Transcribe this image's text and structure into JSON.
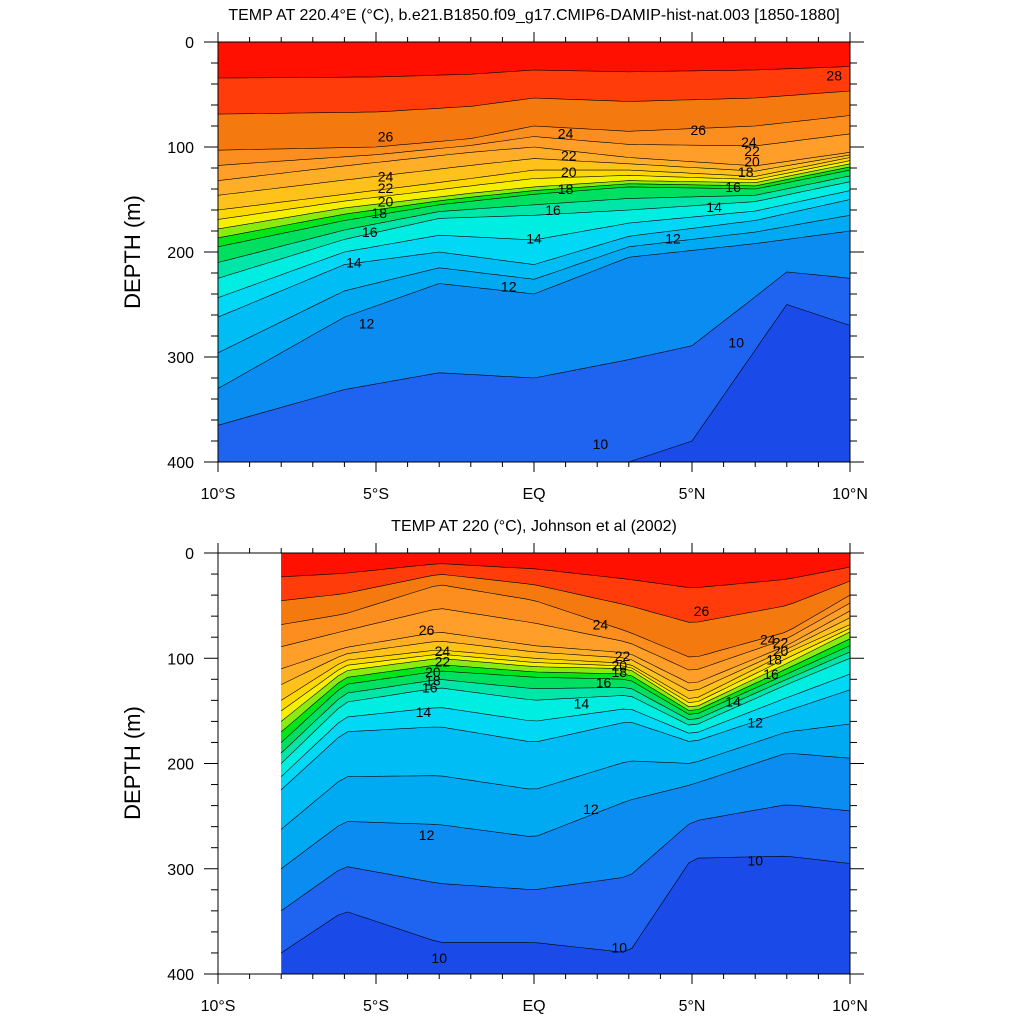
{
  "chart_data": [
    {
      "type": "contour",
      "title": "TEMP AT 220.4°E (°C), b.e21.B1850.f09_g17.CMIP6-DAMIP-hist-nat.003 [1850-1880]",
      "ylabel": "DEPTH (m)",
      "xlabel": "",
      "x_ticks": [
        {
          "value": -10,
          "label": "10°S"
        },
        {
          "value": -5,
          "label": "5°S"
        },
        {
          "value": 0,
          "label": "EQ"
        },
        {
          "value": 5,
          "label": "5°N"
        },
        {
          "value": 10,
          "label": "10°N"
        }
      ],
      "y_ticks": [
        {
          "value": 0,
          "label": "0"
        },
        {
          "value": 100,
          "label": "100"
        },
        {
          "value": 200,
          "label": "200"
        },
        {
          "value": 300,
          "label": "300"
        },
        {
          "value": 400,
          "label": "400"
        }
      ],
      "xlim": [
        -10,
        10
      ],
      "ylim": [
        0,
        400
      ],
      "y_reversed": true,
      "data_xlim": [
        -10,
        10
      ],
      "levels": [
        10,
        11,
        12,
        13,
        14,
        15,
        16,
        17,
        18,
        19,
        20,
        21,
        22,
        23,
        24,
        25,
        26,
        27,
        28
      ],
      "isotherms": [
        {
          "t": 26,
          "x": [
            -10,
            -5,
            -2,
            0,
            3,
            7,
            10
          ],
          "d": [
            103,
            100,
            92,
            80,
            85,
            80,
            70
          ]
        },
        {
          "t": 24,
          "x": [
            -10,
            -6,
            -2,
            0,
            3,
            7,
            10
          ],
          "d": [
            132,
            118,
            105,
            100,
            110,
            118,
            105
          ]
        },
        {
          "t": 22,
          "x": [
            -10,
            -6,
            -2,
            0,
            3,
            7,
            10
          ],
          "d": [
            160,
            145,
            130,
            122,
            122,
            128,
            110
          ]
        },
        {
          "t": 20,
          "x": [
            -10,
            -6,
            -2,
            0,
            3,
            7,
            10
          ],
          "d": [
            178,
            158,
            144,
            138,
            132,
            134,
            116
          ]
        },
        {
          "t": 18,
          "x": [
            -10,
            -6,
            -3,
            0,
            3,
            7,
            10
          ],
          "d": [
            195,
            170,
            155,
            145,
            138,
            140,
            122
          ]
        },
        {
          "t": 16,
          "x": [
            -10,
            -6,
            -3,
            0,
            3,
            7,
            10
          ],
          "d": [
            225,
            188,
            168,
            165,
            160,
            152,
            133
          ]
        },
        {
          "t": 14,
          "x": [
            -10,
            -6,
            -3,
            0,
            3,
            7,
            10
          ],
          "d": [
            262,
            212,
            200,
            212,
            185,
            170,
            150
          ]
        },
        {
          "t": 12,
          "x": [
            -10,
            -6,
            -3,
            0,
            3,
            7,
            10
          ],
          "d": [
            330,
            262,
            230,
            240,
            205,
            192,
            180
          ]
        },
        {
          "t": 10,
          "x": [
            -10,
            -3,
            0,
            3,
            5,
            8,
            10
          ],
          "d": [
            400,
            400,
            400,
            400,
            380,
            250,
            270
          ]
        }
      ],
      "contour_labels": [
        {
          "t": 28,
          "x": 9.5,
          "d": 32
        },
        {
          "t": 26,
          "x": -4.7,
          "d": 90
        },
        {
          "t": 26,
          "x": 5.2,
          "d": 84
        },
        {
          "t": 24,
          "x": -4.7,
          "d": 128
        },
        {
          "t": 24,
          "x": 1.0,
          "d": 87
        },
        {
          "t": 24,
          "x": 6.8,
          "d": 95
        },
        {
          "t": 22,
          "x": -4.7,
          "d": 139
        },
        {
          "t": 22,
          "x": 1.1,
          "d": 108
        },
        {
          "t": 22,
          "x": 6.9,
          "d": 104
        },
        {
          "t": 20,
          "x": -4.7,
          "d": 152
        },
        {
          "t": 20,
          "x": 1.1,
          "d": 124
        },
        {
          "t": 20,
          "x": 6.9,
          "d": 114
        },
        {
          "t": 18,
          "x": -4.9,
          "d": 163
        },
        {
          "t": 18,
          "x": 1.0,
          "d": 140
        },
        {
          "t": 18,
          "x": 6.7,
          "d": 124
        },
        {
          "t": 16,
          "x": -5.2,
          "d": 181
        },
        {
          "t": 16,
          "x": 0.6,
          "d": 160
        },
        {
          "t": 16,
          "x": 6.3,
          "d": 138
        },
        {
          "t": 14,
          "x": -5.7,
          "d": 210
        },
        {
          "t": 14,
          "x": 0.0,
          "d": 187
        },
        {
          "t": 14,
          "x": 5.7,
          "d": 157
        },
        {
          "t": 12,
          "x": -5.3,
          "d": 268
        },
        {
          "t": 12,
          "x": -0.8,
          "d": 233
        },
        {
          "t": 12,
          "x": 4.4,
          "d": 187
        },
        {
          "t": 10,
          "x": 2.1,
          "d": 383
        },
        {
          "t": 10,
          "x": 6.4,
          "d": 286
        }
      ]
    },
    {
      "type": "contour",
      "title": "TEMP AT 220 (°C), Johnson et al (2002)",
      "ylabel": "DEPTH (m)",
      "xlabel": "",
      "x_ticks": [
        {
          "value": -10,
          "label": "10°S"
        },
        {
          "value": -5,
          "label": "5°S"
        },
        {
          "value": 0,
          "label": "EQ"
        },
        {
          "value": 5,
          "label": "5°N"
        },
        {
          "value": 10,
          "label": "10°N"
        }
      ],
      "y_ticks": [
        {
          "value": 0,
          "label": "0"
        },
        {
          "value": 100,
          "label": "100"
        },
        {
          "value": 200,
          "label": "200"
        },
        {
          "value": 300,
          "label": "300"
        },
        {
          "value": 400,
          "label": "400"
        }
      ],
      "xlim": [
        -10,
        10
      ],
      "ylim": [
        0,
        400
      ],
      "y_reversed": true,
      "data_xlim": [
        -8,
        10
      ],
      "levels": [
        10,
        11,
        12,
        13,
        14,
        15,
        16,
        17,
        18,
        19,
        20,
        21,
        22,
        23,
        24,
        25,
        26,
        27,
        28
      ],
      "isotherms": [
        {
          "t": 26,
          "x": [
            -8,
            -6,
            -3,
            0,
            3,
            5,
            8,
            10
          ],
          "d": [
            68,
            58,
            30,
            45,
            75,
            100,
            75,
            40
          ]
        },
        {
          "t": 24,
          "x": [
            -8,
            -6,
            -3,
            0,
            3,
            5,
            8,
            10
          ],
          "d": [
            110,
            90,
            75,
            88,
            95,
            125,
            88,
            55
          ]
        },
        {
          "t": 22,
          "x": [
            -8,
            -6,
            -3,
            0,
            3,
            5,
            8,
            10
          ],
          "d": [
            140,
            102,
            92,
            100,
            105,
            140,
            95,
            68
          ]
        },
        {
          "t": 20,
          "x": [
            -8,
            -6,
            -3,
            0,
            3,
            5,
            8,
            10
          ],
          "d": [
            160,
            112,
            100,
            108,
            110,
            148,
            105,
            75
          ]
        },
        {
          "t": 18,
          "x": [
            -8,
            -6,
            -3,
            0,
            3,
            5,
            8,
            10
          ],
          "d": [
            180,
            125,
            112,
            118,
            120,
            155,
            115,
            88
          ]
        },
        {
          "t": 16,
          "x": [
            -8,
            -6,
            -3,
            0,
            3,
            5,
            8,
            10
          ],
          "d": [
            200,
            142,
            128,
            140,
            135,
            165,
            125,
            100
          ]
        },
        {
          "t": 14,
          "x": [
            -8,
            -6,
            -3,
            0,
            3,
            5,
            8,
            10
          ],
          "d": [
            225,
            170,
            165,
            180,
            160,
            180,
            150,
            130
          ]
        },
        {
          "t": 12,
          "x": [
            -8,
            -6,
            -3,
            0,
            3,
            5,
            8,
            10
          ],
          "d": [
            300,
            255,
            258,
            270,
            235,
            220,
            190,
            195
          ]
        },
        {
          "t": 10,
          "x": [
            -8,
            -6,
            -3,
            0,
            3,
            5,
            8,
            10
          ],
          "d": [
            380,
            340,
            370,
            370,
            380,
            290,
            288,
            295
          ]
        }
      ],
      "contour_labels": [
        {
          "t": 26,
          "x": -3.4,
          "d": 73
        },
        {
          "t": 26,
          "x": 5.3,
          "d": 55
        },
        {
          "t": 24,
          "x": -2.9,
          "d": 93
        },
        {
          "t": 24,
          "x": 2.1,
          "d": 68
        },
        {
          "t": 24,
          "x": 7.4,
          "d": 82
        },
        {
          "t": 22,
          "x": -2.9,
          "d": 103
        },
        {
          "t": 22,
          "x": 2.8,
          "d": 98
        },
        {
          "t": 22,
          "x": 7.8,
          "d": 85
        },
        {
          "t": 20,
          "x": -3.2,
          "d": 113
        },
        {
          "t": 20,
          "x": 2.7,
          "d": 107
        },
        {
          "t": 20,
          "x": 7.8,
          "d": 93
        },
        {
          "t": 18,
          "x": -3.2,
          "d": 121
        },
        {
          "t": 18,
          "x": 2.7,
          "d": 113
        },
        {
          "t": 18,
          "x": 7.6,
          "d": 101
        },
        {
          "t": 16,
          "x": -3.3,
          "d": 128
        },
        {
          "t": 16,
          "x": 2.2,
          "d": 123
        },
        {
          "t": 16,
          "x": 7.5,
          "d": 115
        },
        {
          "t": 14,
          "x": -3.5,
          "d": 151
        },
        {
          "t": 14,
          "x": 1.5,
          "d": 143
        },
        {
          "t": 14,
          "x": 6.3,
          "d": 141
        },
        {
          "t": 12,
          "x": -3.4,
          "d": 268
        },
        {
          "t": 12,
          "x": 1.8,
          "d": 243
        },
        {
          "t": 12,
          "x": 7.0,
          "d": 161
        },
        {
          "t": 10,
          "x": -3.0,
          "d": 385
        },
        {
          "t": 10,
          "x": 2.7,
          "d": 375
        },
        {
          "t": 10,
          "x": 7.0,
          "d": 292
        }
      ]
    }
  ]
}
